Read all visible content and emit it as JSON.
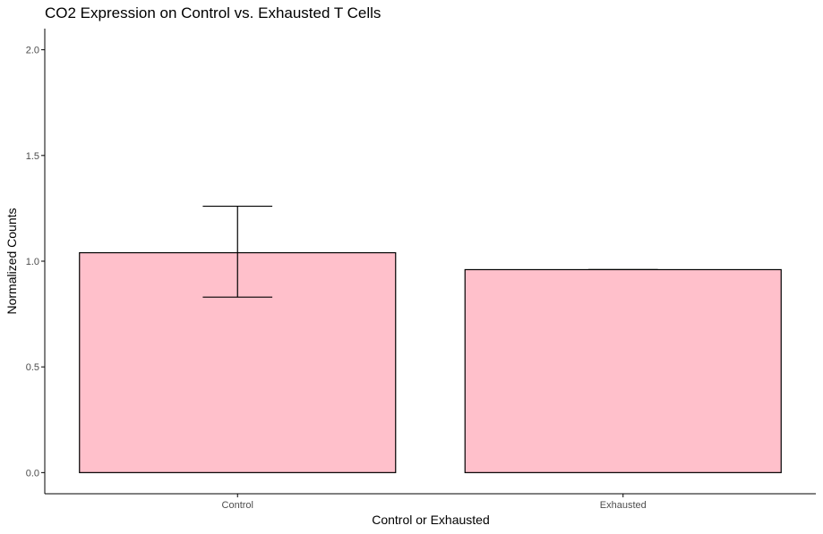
{
  "chart_data": {
    "type": "bar",
    "title": "CO2 Expression on Control vs. Exhausted T Cells",
    "xlabel": "Control or Exhausted",
    "ylabel": "Normalized Counts",
    "categories": [
      "Control",
      "Exhausted"
    ],
    "values": [
      1.04,
      0.96
    ],
    "error_low": [
      0.83,
      0.96
    ],
    "error_high": [
      1.26,
      0.96
    ],
    "ylim": [
      -0.1,
      2.1
    ],
    "yticks": [
      0.0,
      0.5,
      1.0,
      1.5,
      2.0
    ],
    "ytick_labels": [
      "0.0",
      "0.5",
      "1.0",
      "1.5",
      "2.0"
    ],
    "bar_fill": "#ffc0cb",
    "bar_stroke": "#000000",
    "grid": false,
    "legend": "none"
  }
}
